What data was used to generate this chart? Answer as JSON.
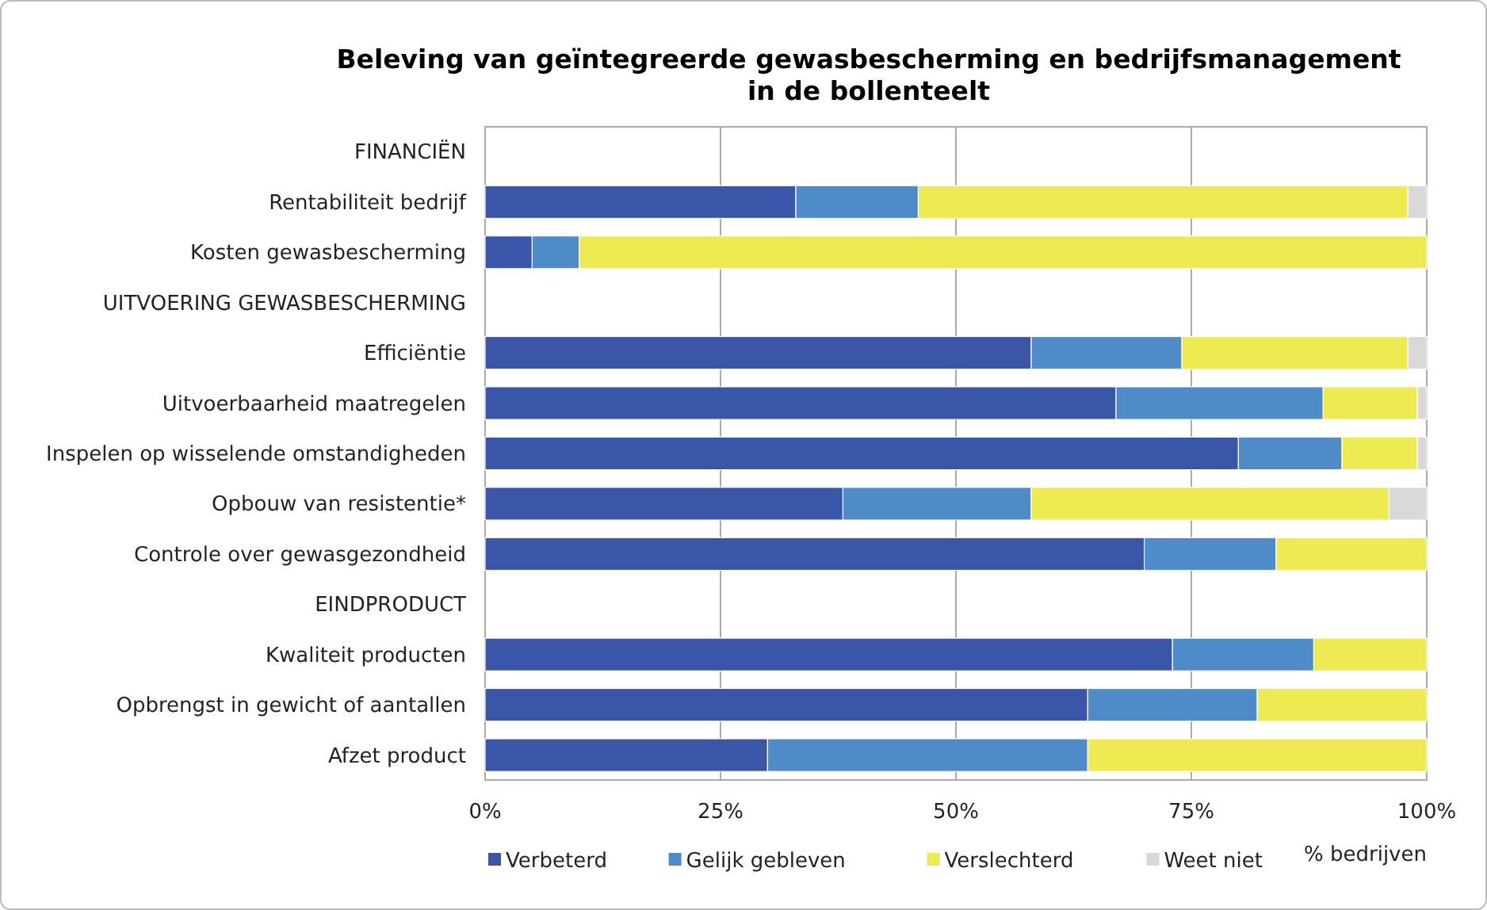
{
  "chart_data": {
    "type": "bar",
    "orientation": "horizontal",
    "stacked": true,
    "title": "Beleving van geïntegreerde gewasbescherming en bedrijfsmanagement\nin de bollenteelt",
    "xlabel": "% bedrijven",
    "categories": [
      "FINANCIËN",
      "Rentabiliteit bedrijf",
      "Kosten gewasbescherming",
      "UITVOERING GEWASBESCHERMING",
      "Efficiëntie",
      "Uitvoerbaarheid maatregelen",
      "Inspelen op wisselende omstandigheden",
      "Opbouw van resistentie*",
      "Controle over gewasgezondheid",
      "EINDPRODUCT",
      "Kwaliteit producten",
      "Opbrengst in gewicht of aantallen",
      "Afzet product"
    ],
    "series": [
      {
        "name": "Verbeterd",
        "color": "#3a56a8",
        "values": [
          null,
          33,
          5,
          null,
          58,
          67,
          80,
          38,
          70,
          null,
          73,
          64,
          30
        ]
      },
      {
        "name": "Gelijk gebleven",
        "color": "#4f8bc9",
        "values": [
          null,
          13,
          5,
          null,
          16,
          22,
          11,
          20,
          14,
          null,
          15,
          18,
          34
        ]
      },
      {
        "name": "Verslechterd",
        "color": "#eeea52",
        "values": [
          null,
          52,
          90,
          null,
          24,
          10,
          8,
          38,
          16,
          null,
          12,
          18,
          36
        ]
      },
      {
        "name": "Weet niet",
        "color": "#d9d9d9",
        "values": [
          null,
          2,
          0,
          null,
          2,
          1,
          1,
          4,
          0,
          null,
          0,
          0,
          0
        ]
      }
    ],
    "xlim": [
      0,
      100
    ],
    "xticks": [
      {
        "value": 0,
        "label": "0%"
      },
      {
        "value": 25,
        "label": "25%"
      },
      {
        "value": 50,
        "label": "50%"
      },
      {
        "value": 75,
        "label": "75%"
      },
      {
        "value": 100,
        "label": "100%"
      }
    ],
    "grid": "x",
    "legend": "bottom"
  }
}
